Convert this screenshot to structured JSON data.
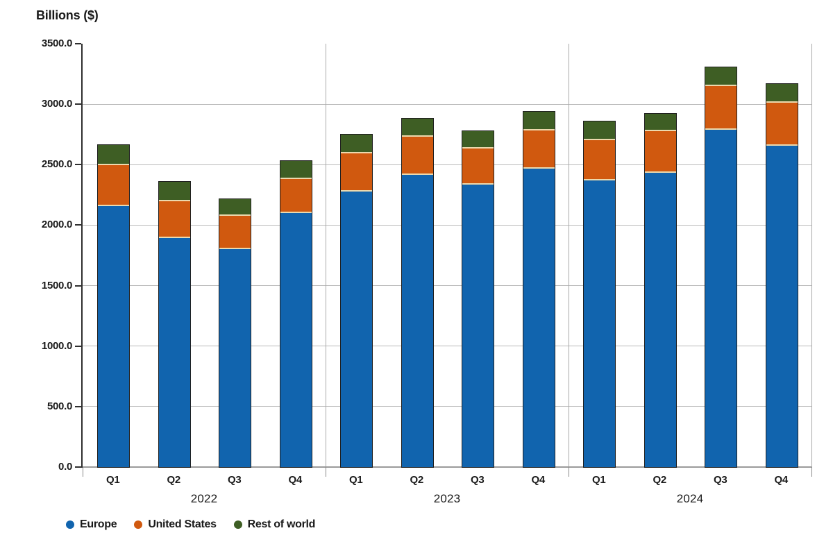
{
  "title": "Billions ($)",
  "chart_data": {
    "type": "bar",
    "stacked": true,
    "title": "Billions ($)",
    "ylabel": "Billions ($)",
    "ylim": [
      0,
      3500
    ],
    "grid": true,
    "legend_position": "bottom",
    "yticks": [
      {
        "value": 0,
        "label": "0.0"
      },
      {
        "value": 500,
        "label": "500.0"
      },
      {
        "value": 1000,
        "label": "1000.0"
      },
      {
        "value": 1500,
        "label": "1500.0"
      },
      {
        "value": 2000,
        "label": "2000.0"
      },
      {
        "value": 2500,
        "label": "2500.0"
      },
      {
        "value": 3000,
        "label": "3000.0"
      },
      {
        "value": 3500,
        "label": "3500.0"
      }
    ],
    "groups": [
      {
        "label": "2022",
        "categories": [
          "Q1",
          "Q2",
          "Q3",
          "Q4"
        ]
      },
      {
        "label": "2023",
        "categories": [
          "Q1",
          "Q2",
          "Q3",
          "Q4"
        ]
      },
      {
        "label": "2024",
        "categories": [
          "Q1",
          "Q2",
          "Q3",
          "Q4"
        ]
      }
    ],
    "categories": [
      "2022 Q1",
      "2022 Q2",
      "2022 Q3",
      "2022 Q4",
      "2023 Q1",
      "2023 Q2",
      "2023 Q3",
      "2023 Q4",
      "2024 Q1",
      "2024 Q2",
      "2024 Q3",
      "2024 Q4"
    ],
    "series": [
      {
        "name": "Europe",
        "color": "#1164ae",
        "values": [
          2160,
          1895,
          1800,
          2100,
          2280,
          2415,
          2335,
          2465,
          2370,
          2430,
          2790,
          2655
        ]
      },
      {
        "name": "United States",
        "color": "#d0590f",
        "values": [
          335,
          300,
          275,
          280,
          315,
          315,
          300,
          320,
          335,
          345,
          360,
          355
        ]
      },
      {
        "name": "Rest of world",
        "color": "#3e5e24",
        "values": [
          170,
          165,
          140,
          150,
          155,
          150,
          140,
          155,
          150,
          145,
          155,
          155
        ]
      }
    ]
  },
  "colors": {
    "europe": "#1164ae",
    "united_states": "#d0590f",
    "rest_of_world": "#3e5e24",
    "segment_separator": "#ecd9ad",
    "bar_border": "#1f1f1f",
    "gridline": "#b9b9b9",
    "axis": "#2f2f2f"
  }
}
